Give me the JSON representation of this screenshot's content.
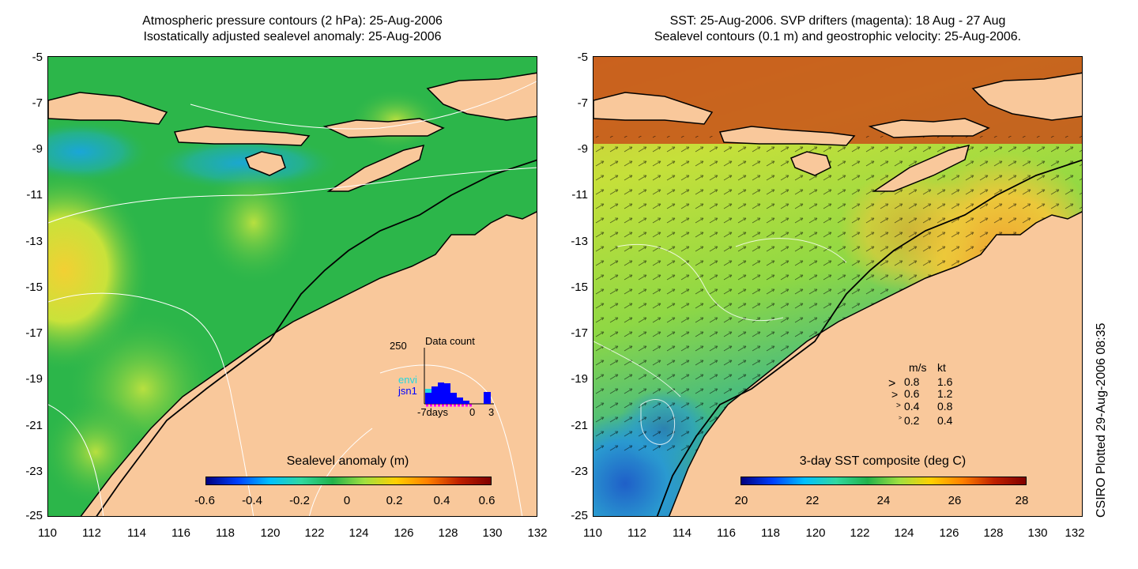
{
  "left_panel": {
    "title_line1": "Atmospheric pressure contours (2 hPa): 25-Aug-2006",
    "title_line2": "Isostatically adjusted sealevel anomaly: 25-Aug-2006",
    "colorbar_title": "Sealevel anomaly (m)",
    "colorbar_ticks": [
      "-0.6",
      "-0.4",
      "-0.2",
      "0",
      "0.2",
      "0.4",
      "0.6"
    ],
    "inset": {
      "title": "Data count",
      "y_max_label": "250",
      "series1": "envi",
      "series2": "jsn1",
      "x_left": "-7days",
      "x_zero": "0",
      "x_right": "3",
      "series1_color": "#22d8e0",
      "series2_color": "#0000ff"
    }
  },
  "right_panel": {
    "title_line1": "SST: 25-Aug-2006. SVP drifters (magenta): 18 Aug - 27 Aug",
    "title_line2": "Sealevel contours (0.1 m) and geostrophic velocity: 25-Aug-2006.",
    "colorbar_title": "3-day SST composite (deg C)",
    "colorbar_ticks": [
      "20",
      "22",
      "24",
      "26",
      "28"
    ],
    "legend": {
      "header_ms": "m/s",
      "header_kt": "kt",
      "rows": [
        {
          "ms": "0.8",
          "kt": "1.6"
        },
        {
          "ms": "0.6",
          "kt": "1.2"
        },
        {
          "ms": "0.4",
          "kt": "0.8"
        },
        {
          "ms": "0.2",
          "kt": "0.4"
        }
      ]
    }
  },
  "axes": {
    "y_ticks": [
      "-5",
      "-7",
      "-9",
      "-11",
      "-13",
      "-15",
      "-17",
      "-19",
      "-21",
      "-23",
      "-25"
    ],
    "x_ticks": [
      "110",
      "112",
      "114",
      "116",
      "118",
      "120",
      "122",
      "124",
      "126",
      "128",
      "130",
      "132"
    ]
  },
  "credit": "CSIRO Plotted 29-Aug-2006 08:35",
  "colors": {
    "land": "#f9c89b",
    "sea_green": "#22b24a",
    "sst_warm": "#e8d238",
    "sst_hot": "#c8501a",
    "sst_cool": "#2a7fd0"
  }
}
